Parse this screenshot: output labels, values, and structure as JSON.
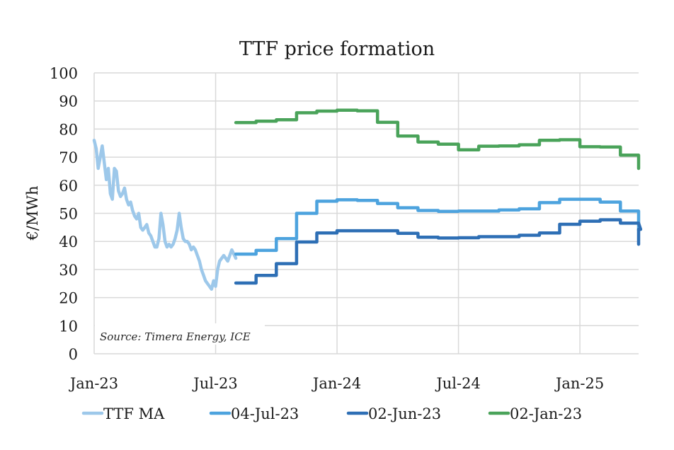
{
  "chart_data": {
    "type": "line",
    "title": "TTF price formation",
    "xlabel": "",
    "ylabel": "€/MWh",
    "ylim": [
      0,
      100
    ],
    "yticks": [
      "0",
      "10",
      "20",
      "30",
      "40",
      "50",
      "60",
      "70",
      "80",
      "90",
      "100"
    ],
    "xlim_months": [
      0,
      26.9
    ],
    "x_unit": "months since Jan-23",
    "xticks": [
      {
        "label": "Jan-23",
        "month": 0
      },
      {
        "label": "Jul-23",
        "month": 6
      },
      {
        "label": "Jan-24",
        "month": 12
      },
      {
        "label": "Jul-24",
        "month": 18
      },
      {
        "label": "Jan-25",
        "month": 24
      }
    ],
    "grid": true,
    "legend_position": "bottom",
    "annotation": "Source: Timera Energy, ICE",
    "series": [
      {
        "name": "TTF MA",
        "color": "#9dc8ea",
        "style": "line",
        "points": [
          [
            0,
            76
          ],
          [
            0.1,
            73
          ],
          [
            0.2,
            66
          ],
          [
            0.3,
            70
          ],
          [
            0.4,
            74
          ],
          [
            0.5,
            68
          ],
          [
            0.6,
            62
          ],
          [
            0.7,
            66
          ],
          [
            0.8,
            57
          ],
          [
            0.9,
            55
          ],
          [
            1.0,
            66
          ],
          [
            1.1,
            65
          ],
          [
            1.2,
            58
          ],
          [
            1.3,
            56
          ],
          [
            1.4,
            57
          ],
          [
            1.5,
            59
          ],
          [
            1.6,
            55
          ],
          [
            1.7,
            53
          ],
          [
            1.8,
            54
          ],
          [
            1.9,
            51
          ],
          [
            2.0,
            49
          ],
          [
            2.1,
            48
          ],
          [
            2.2,
            50
          ],
          [
            2.3,
            45
          ],
          [
            2.4,
            44
          ],
          [
            2.5,
            45
          ],
          [
            2.6,
            46
          ],
          [
            2.7,
            43
          ],
          [
            2.8,
            42
          ],
          [
            2.9,
            40
          ],
          [
            3.0,
            38
          ],
          [
            3.1,
            38
          ],
          [
            3.2,
            41
          ],
          [
            3.3,
            50
          ],
          [
            3.4,
            46
          ],
          [
            3.5,
            40
          ],
          [
            3.6,
            38
          ],
          [
            3.7,
            39
          ],
          [
            3.8,
            38
          ],
          [
            3.9,
            39
          ],
          [
            4.0,
            41
          ],
          [
            4.1,
            44
          ],
          [
            4.2,
            50
          ],
          [
            4.3,
            45
          ],
          [
            4.4,
            41
          ],
          [
            4.5,
            40
          ],
          [
            4.6,
            40
          ],
          [
            4.7,
            39
          ],
          [
            4.8,
            37
          ],
          [
            4.9,
            38
          ],
          [
            5.0,
            37
          ],
          [
            5.1,
            35
          ],
          [
            5.2,
            33
          ],
          [
            5.3,
            30
          ],
          [
            5.4,
            28
          ],
          [
            5.5,
            26
          ],
          [
            5.6,
            25
          ],
          [
            5.7,
            24
          ],
          [
            5.8,
            23
          ],
          [
            5.9,
            26
          ],
          [
            6.0,
            24
          ],
          [
            6.1,
            30
          ],
          [
            6.2,
            33
          ],
          [
            6.4,
            35
          ],
          [
            6.6,
            33
          ],
          [
            6.8,
            37
          ],
          [
            7.0,
            34
          ]
        ]
      },
      {
        "name": "04-Jul-23",
        "color": "#4da3de",
        "style": "step",
        "start_month": 7,
        "monthly_values": [
          35.5,
          36.8,
          41.0,
          50.0,
          54.3,
          54.8,
          54.6,
          53.5,
          52.0,
          51.0,
          50.7,
          50.8,
          50.8,
          51.2,
          51.6,
          53.8,
          55.0,
          55.0,
          54.0,
          50.8
        ],
        "end_value": 44
      },
      {
        "name": "02-Jun-23",
        "color": "#2e6fb5",
        "style": "step",
        "start_month": 7,
        "monthly_values": [
          25.2,
          27.9,
          32.1,
          39.8,
          43.0,
          43.8,
          43.8,
          43.8,
          42.9,
          41.5,
          41.2,
          41.3,
          41.7,
          41.7,
          42.2,
          43.0,
          46.1,
          47.2,
          47.7,
          46.5,
          44.3
        ],
        "end_value": 39
      },
      {
        "name": "02-Jan-23",
        "color": "#4aa35a",
        "style": "step",
        "start_month": 7,
        "monthly_values": [
          82.3,
          82.8,
          83.3,
          85.8,
          86.4,
          86.7,
          86.5,
          82.4,
          77.5,
          75.4,
          74.6,
          72.6,
          73.9,
          74.0,
          74.4,
          76.0,
          76.2,
          73.7,
          73.6,
          70.7
        ],
        "end_value": 66
      }
    ]
  }
}
